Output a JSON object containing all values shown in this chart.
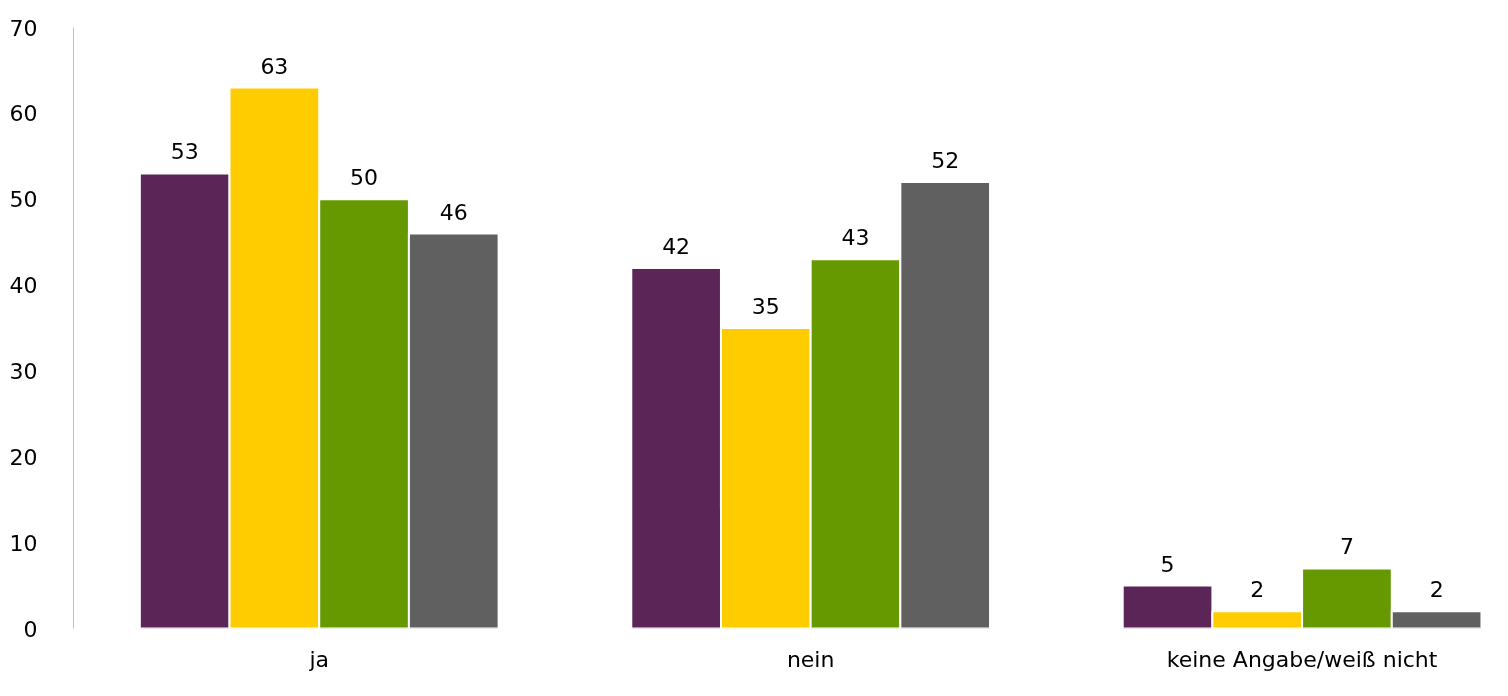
{
  "chart_data": {
    "type": "bar",
    "categories": [
      "ja",
      "nein",
      "keine Angabe/weiß nicht"
    ],
    "series": [
      {
        "color": "#5c2557",
        "values": [
          53,
          42,
          5
        ]
      },
      {
        "color": "#ffcc00",
        "values": [
          63,
          35,
          2
        ]
      },
      {
        "color": "#669900",
        "values": [
          50,
          43,
          7
        ]
      },
      {
        "color": "#606060",
        "values": [
          46,
          52,
          2
        ]
      }
    ],
    "ylim": [
      0,
      70
    ],
    "yticks": [
      0,
      10,
      20,
      30,
      40,
      50,
      60,
      70
    ],
    "data_labels": true,
    "grid": false
  }
}
